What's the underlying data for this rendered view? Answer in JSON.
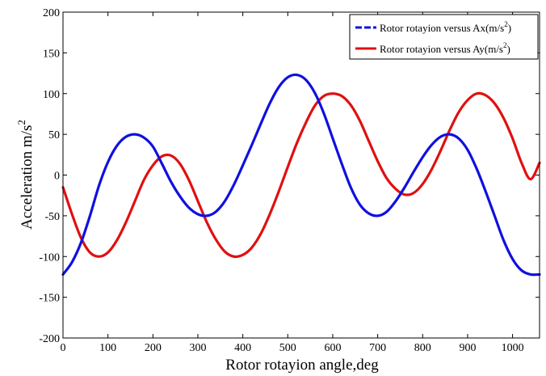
{
  "chart_data": {
    "type": "line",
    "title": "",
    "xlabel": "Rotor rotayion angle,deg",
    "ylabel": "Acceleration m/s",
    "ylabel_superscript": "2",
    "xlim": [
      0,
      1060
    ],
    "ylim": [
      -200,
      200
    ],
    "x_ticks": [
      0,
      100,
      200,
      300,
      400,
      500,
      600,
      700,
      800,
      900,
      1000
    ],
    "y_ticks": [
      -200,
      -150,
      -100,
      -50,
      0,
      50,
      100,
      150,
      200
    ],
    "grid": false,
    "legend_position": "top-right",
    "series": [
      {
        "name": "Rotor rotayion versus Ax(m/s",
        "name_superscript": "2",
        "name_suffix": ")",
        "color": "#1010e0",
        "style": "dashed",
        "x": [
          0,
          20,
          40,
          60,
          80,
          100,
          120,
          140,
          160,
          180,
          200,
          220,
          240,
          260,
          280,
          300,
          320,
          340,
          360,
          380,
          400,
          420,
          440,
          460,
          480,
          500,
          520,
          540,
          560,
          580,
          600,
          620,
          640,
          660,
          680,
          700,
          720,
          740,
          760,
          780,
          800,
          820,
          840,
          860,
          880,
          900,
          920,
          940,
          960,
          980,
          1000,
          1020,
          1040,
          1060
        ],
        "y": [
          -122,
          -107,
          -83,
          -50,
          -13,
          16,
          36,
          47,
          50,
          46,
          35,
          14,
          -8,
          -26,
          -40,
          -48,
          -50,
          -45,
          -32,
          -12,
          12,
          37,
          63,
          88,
          108,
          120,
          123,
          117,
          101,
          76,
          45,
          14,
          -15,
          -36,
          -47,
          -50,
          -45,
          -32,
          -15,
          4,
          22,
          37,
          47,
          50,
          45,
          31,
          8,
          -20,
          -50,
          -80,
          -103,
          -117,
          -122,
          -122
        ]
      },
      {
        "name": "Rotor rotayion versus Ay(m/s",
        "name_superscript": "2",
        "name_suffix": ")",
        "color": "#e01010",
        "style": "solid",
        "x": [
          0,
          20,
          40,
          60,
          80,
          100,
          120,
          140,
          160,
          180,
          200,
          220,
          240,
          260,
          280,
          300,
          320,
          340,
          360,
          380,
          400,
          420,
          440,
          460,
          480,
          500,
          520,
          540,
          560,
          580,
          600,
          620,
          640,
          660,
          680,
          700,
          720,
          740,
          760,
          780,
          800,
          820,
          840,
          860,
          880,
          900,
          920,
          940,
          960,
          980,
          1000,
          1020,
          1040,
          1060
        ],
        "y": [
          -15,
          -48,
          -77,
          -95,
          -100,
          -95,
          -80,
          -58,
          -32,
          -6,
          12,
          23,
          24,
          14,
          -6,
          -32,
          -58,
          -79,
          -94,
          -100,
          -98,
          -89,
          -72,
          -48,
          -20,
          10,
          39,
          64,
          85,
          97,
          100,
          97,
          86,
          67,
          42,
          17,
          -4,
          -17,
          -24,
          -22,
          -11,
          7,
          30,
          55,
          77,
          92,
          100,
          98,
          88,
          70,
          45,
          15,
          -5,
          15
        ]
      }
    ]
  }
}
